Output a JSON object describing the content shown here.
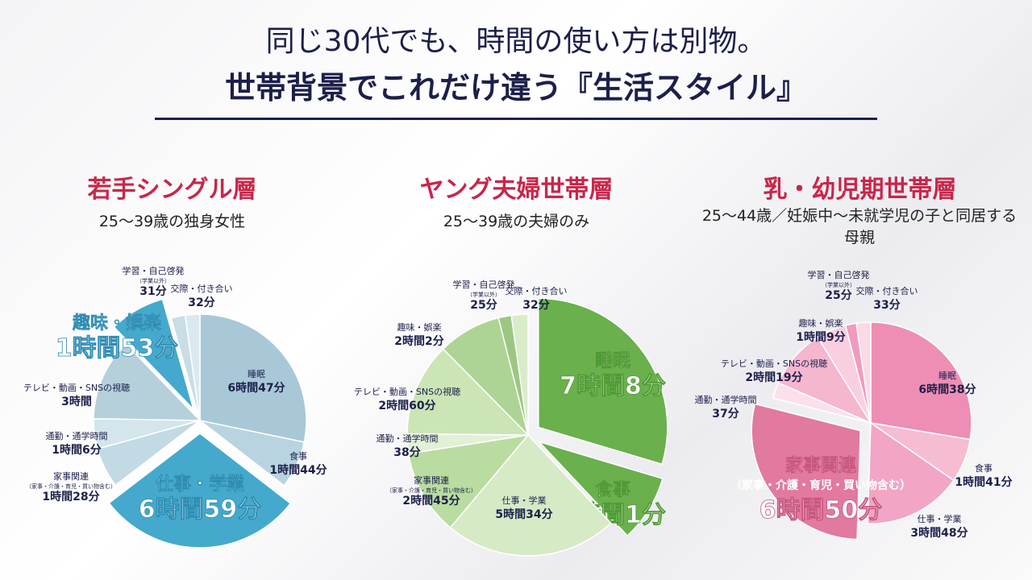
{
  "header": {
    "title_line1": "同じ30代でも、時間の使い方は別物。",
    "title_line2": "世帯背景でこれだけ違う『生活スタイル』"
  },
  "chart_data": [
    {
      "type": "pie",
      "title": "若手シングル層",
      "subtitle": "25〜39歳の独身女性",
      "start_category": "睡眠",
      "slices": [
        {
          "label": "睡眠",
          "value_text": "6時間47分",
          "minutes": 407,
          "color": "#a8c8d8",
          "exploded": false
        },
        {
          "label": "食事",
          "value_text": "1時間44分",
          "minutes": 104,
          "color": "#b8d4e0",
          "exploded": false
        },
        {
          "label": "仕事・学業",
          "value_text": "6時間59分",
          "minutes": 419,
          "color": "#44a9cc",
          "exploded": true
        },
        {
          "label": "家事関連",
          "note": "（家事・介護・育児・買い物含む）",
          "value_text": "1時間28分",
          "minutes": 88,
          "color": "#c2dae4",
          "exploded": false
        },
        {
          "label": "通勤・通学時間",
          "value_text": "1時間6分",
          "minutes": 66,
          "color": "#d4e5ec",
          "exploded": false
        },
        {
          "label": "テレビ・動画・SNSの視聴",
          "value_text": "3時間",
          "minutes": 180,
          "color": "#b5cfdb",
          "exploded": false
        },
        {
          "label": "趣味・娯楽",
          "value_text": "1時間53分",
          "minutes": 113,
          "color": "#44a9cc",
          "exploded": true
        },
        {
          "label": "学習・自己啓発",
          "note": "（学業以外）",
          "value_text": "31分",
          "minutes": 31,
          "color": "#c8dde6",
          "exploded": false
        },
        {
          "label": "交際・付き合い",
          "value_text": "32分",
          "minutes": 32,
          "color": "#dbe9ef",
          "exploded": false
        }
      ]
    },
    {
      "type": "pie",
      "title": "ヤング夫婦世帯層",
      "subtitle": "25〜39歳の夫婦のみ",
      "start_category": "睡眠",
      "slices": [
        {
          "label": "睡眠",
          "value_text": "7時間8分",
          "minutes": 428,
          "color": "#6ab04c",
          "exploded": true
        },
        {
          "label": "食事",
          "value_text": "2時間1分",
          "minutes": 121,
          "color": "#6ab04c",
          "exploded": true
        },
        {
          "label": "仕事・学業",
          "value_text": "5時間34分",
          "minutes": 334,
          "color": "#d6eac6",
          "exploded": false
        },
        {
          "label": "家事関連",
          "note": "（家事・介護・育児・買い物含む）",
          "value_text": "2時間45分",
          "minutes": 165,
          "color": "#b9dca0",
          "exploded": false
        },
        {
          "label": "通勤・通学時間",
          "value_text": "38分",
          "minutes": 38,
          "color": "#e2f0d6",
          "exploded": false
        },
        {
          "label": "テレビ・動画・SNSの視聴",
          "value_text": "2時間60分",
          "minutes": 180,
          "color": "#cbe5b6",
          "exploded": false
        },
        {
          "label": "趣味・娯楽",
          "value_text": "2時間2分",
          "minutes": 122,
          "color": "#aed495",
          "exploded": false
        },
        {
          "label": "学習・自己啓発",
          "note": "（学業以外）",
          "value_text": "25分",
          "minutes": 25,
          "color": "#9cc783",
          "exploded": false
        },
        {
          "label": "交際・付き合い",
          "value_text": "32分",
          "minutes": 32,
          "color": "#d9ecc9",
          "exploded": false
        }
      ]
    },
    {
      "type": "pie",
      "title": "乳・幼児期世帯層",
      "subtitle": "25〜44歳／妊娠中〜未就学児の子と同居する母親",
      "start_category": "睡眠",
      "slices": [
        {
          "label": "睡眠",
          "value_text": "6時間38分",
          "minutes": 398,
          "color": "#ee8eb4",
          "exploded": false
        },
        {
          "label": "食事",
          "value_text": "1時間41分",
          "minutes": 101,
          "color": "#f6bcd2",
          "exploded": false
        },
        {
          "label": "仕事・学業",
          "value_text": "3時間48分",
          "minutes": 228,
          "color": "#f2a5c4",
          "exploded": false
        },
        {
          "label": "家事関連",
          "note": "（家事・介護・育児・買い物含む）",
          "value_text": "6時間50分",
          "minutes": 410,
          "color": "#e2799f",
          "exploded": true
        },
        {
          "label": "通勤・通学時間",
          "value_text": "37分",
          "minutes": 37,
          "color": "#fbe0eb",
          "exploded": false
        },
        {
          "label": "テレビ・動画・SNSの視聴",
          "value_text": "2時間19分",
          "minutes": 139,
          "color": "#f5b6cf",
          "exploded": false
        },
        {
          "label": "趣味・娯楽",
          "value_text": "1時間9分",
          "minutes": 69,
          "color": "#f9cfe0",
          "exploded": false
        },
        {
          "label": "学習・自己啓発",
          "note": "（学業以外）",
          "value_text": "25分",
          "minutes": 25,
          "color": "#f19abf",
          "exploded": false
        },
        {
          "label": "交際・付き合い",
          "value_text": "33分",
          "minutes": 33,
          "color": "#fbd9e7",
          "exploded": false
        }
      ]
    }
  ],
  "colors": {
    "navy": "#1c1f4a",
    "title_red": "#c9264a",
    "label_dark": "#1c1f4a"
  }
}
